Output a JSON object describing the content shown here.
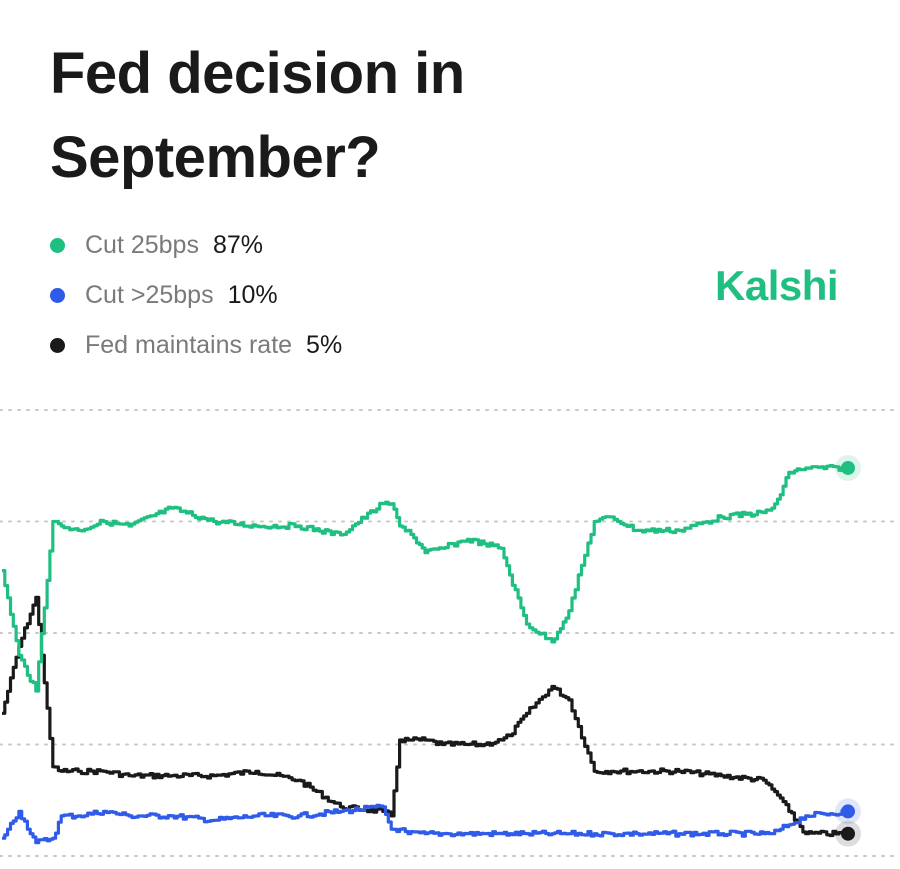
{
  "header": {
    "title": "Fed decision in September?"
  },
  "brand": {
    "name": "Kalshi",
    "color": "#1fbf82"
  },
  "legend": [
    {
      "label": "Cut 25bps",
      "value": "87%",
      "color": "#1fbf82"
    },
    {
      "label": "Cut >25bps",
      "value": "10%",
      "color": "#2f5be8"
    },
    {
      "label": "Fed maintains rate",
      "value": "5%",
      "color": "#1a1a1a"
    }
  ],
  "chart_data": {
    "type": "line",
    "ylim": [
      0,
      100
    ],
    "gridlines": [
      0,
      25,
      50,
      75,
      100
    ],
    "grid": true,
    "x": [
      0,
      2,
      4,
      6,
      7,
      9,
      12,
      15,
      20,
      25,
      30,
      35,
      40,
      45,
      46,
      47,
      48,
      50,
      52,
      55,
      57,
      59,
      60,
      62,
      65,
      67,
      70,
      72,
      75,
      80,
      85,
      90,
      91,
      92,
      93,
      95,
      100
    ],
    "series": [
      {
        "name": "Cut 25bps",
        "color": "#1fbf82",
        "values": [
          64,
          45,
          37,
          75,
          74,
          73,
          75,
          74,
          78,
          75,
          74,
          74,
          72,
          79,
          79,
          74,
          73,
          68,
          69,
          71,
          70,
          69,
          63,
          52,
          48,
          55,
          75,
          76,
          73,
          73,
          76,
          77,
          78,
          81,
          86,
          87,
          87
        ]
      },
      {
        "name": "Cut >25bps",
        "color": "#2f5be8",
        "values": [
          4,
          10,
          3,
          4,
          9,
          9,
          10,
          9,
          9,
          8,
          9,
          9,
          10,
          11,
          6,
          6,
          5,
          5,
          5,
          5,
          5,
          5,
          5,
          5,
          5,
          5,
          5,
          5,
          5,
          5,
          5,
          5,
          5,
          6,
          7,
          9,
          10
        ]
      },
      {
        "name": "Fed maintains rate",
        "color": "#1a1a1a",
        "values": [
          32,
          47,
          58,
          20,
          19,
          19,
          19,
          18,
          18,
          18,
          19,
          17,
          11,
          10,
          9,
          26,
          26,
          26,
          25,
          25,
          25,
          26,
          27,
          32,
          38,
          35,
          19,
          19,
          19,
          19,
          18,
          17,
          15,
          13,
          10,
          5,
          5
        ]
      }
    ]
  }
}
